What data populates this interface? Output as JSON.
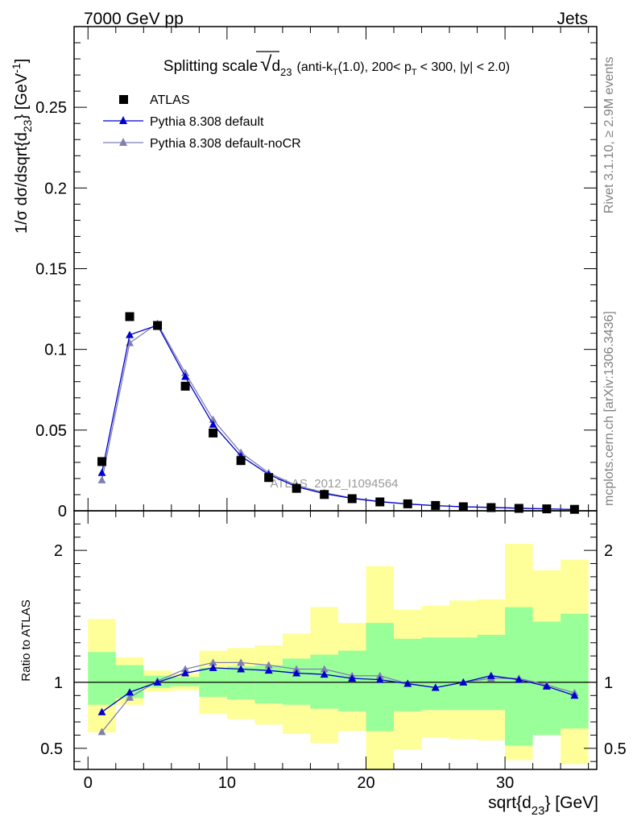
{
  "header": {
    "left": "7000 GeV pp",
    "right": "Jets"
  },
  "side_labels": {
    "rivet": "Rivet 3.1.10, ≥ 2.9M events",
    "mcplots": "mcplots.cern.ch [arXiv:1306.3436]"
  },
  "watermark": "ATLAS_2012_I1094564",
  "title": {
    "prefix": "Splitting scale",
    "var": "d",
    "var_sub": "23",
    "suffix_1": "(anti-k",
    "suffix_sub_1": "T",
    "suffix_2": "(1.0), 200< p",
    "suffix_sub_2": "T",
    "suffix_3": "< 300, |y| < 2.0)"
  },
  "axes": {
    "ylabel_main": "1/σ dσ/dsqrt{d",
    "ylabel_main_sub": "23",
    "ylabel_main_end": "} [GeV",
    "ylabel_main_sup": "-1",
    "ylabel_main_close": "]",
    "ylabel_ratio": "Ratio to ATLAS",
    "xlabel": "sqrt{d",
    "xlabel_sub": "23",
    "xlabel_end": "} [GeV]"
  },
  "colors": {
    "data": "#000000",
    "default": "#0000cc",
    "nocr": "#7f7fb2",
    "band_inner": "#99ff99",
    "band_outer": "#ffff99"
  },
  "chart_data": {
    "type": "scatter",
    "x_edges": [
      0,
      2,
      4,
      6,
      8,
      10,
      12,
      14,
      16,
      18,
      20,
      22,
      24,
      26,
      28,
      30,
      32,
      34,
      36
    ],
    "x": [
      1,
      3,
      5,
      7,
      9,
      11,
      13,
      15,
      17,
      19,
      21,
      23,
      25,
      27,
      29,
      31,
      33,
      35
    ],
    "xlim": [
      -1,
      36.6
    ],
    "xticks": [
      0,
      10,
      20,
      30
    ],
    "main": {
      "ylim": [
        0,
        0.3
      ],
      "yticks": [
        0,
        0.05,
        0.1,
        0.15,
        0.2,
        0.25
      ],
      "ytick_labels": [
        "0",
        "0.05",
        "0.1",
        "0.15",
        "0.2",
        "0.25"
      ]
    },
    "ratio": {
      "ylim": [
        0.34,
        2.3
      ],
      "yticks": [
        0.5,
        1,
        2
      ],
      "ytick_labels": [
        "0.5",
        "1",
        "2"
      ]
    },
    "legend_position": "top-left",
    "series": [
      {
        "name": "ATLAS",
        "marker": "square",
        "values": [
          0.0305,
          0.1203,
          0.1148,
          0.0772,
          0.0482,
          0.0311,
          0.0206,
          0.0139,
          0.0101,
          0.0075,
          0.0055,
          0.0043,
          0.0033,
          0.0025,
          0.002,
          0.0015,
          0.0012,
          0.0009
        ]
      },
      {
        "name": "Pythia 8.308 default",
        "marker": "triangle",
        "values": [
          0.0236,
          0.109,
          0.115,
          0.0831,
          0.0535,
          0.0339,
          0.0225,
          0.0149,
          0.0106,
          0.0077,
          0.0056,
          0.0042,
          0.0032,
          0.0025,
          0.0021,
          0.0016,
          0.0012,
          0.0008
        ],
        "ratio": [
          0.775,
          0.925,
          1.0,
          1.07,
          1.11,
          1.1,
          1.09,
          1.07,
          1.06,
          1.03,
          1.02,
          0.99,
          0.96,
          1.0,
          1.05,
          1.02,
          0.97,
          0.9
        ]
      },
      {
        "name": "Pythia 8.308 default-noCR",
        "marker": "triangle",
        "values": [
          0.019,
          0.104,
          0.116,
          0.0854,
          0.0565,
          0.0361,
          0.0235,
          0.0157,
          0.0112,
          0.0079,
          0.0058,
          0.0043,
          0.0032,
          0.0025,
          0.0021,
          0.0016,
          0.0012,
          0.0008
        ],
        "ratio": [
          0.625,
          0.885,
          1.01,
          1.1,
          1.15,
          1.15,
          1.13,
          1.1,
          1.1,
          1.05,
          1.05,
          0.99,
          0.96,
          1.0,
          1.03,
          1.03,
          0.98,
          0.92
        ]
      }
    ],
    "band_inner_lo": [
      0.83,
      0.88,
      0.96,
      0.97,
      0.89,
      0.87,
      0.84,
      0.83,
      0.8,
      0.78,
      0.63,
      0.78,
      0.79,
      0.79,
      0.79,
      0.52,
      0.6,
      0.65
    ],
    "band_inner_hi": [
      1.23,
      1.13,
      1.05,
      1.04,
      1.11,
      1.12,
      1.13,
      1.18,
      1.21,
      1.24,
      1.45,
      1.33,
      1.34,
      1.34,
      1.36,
      1.57,
      1.46,
      1.52
    ],
    "band_outer_lo": [
      0.62,
      0.83,
      0.93,
      0.94,
      0.76,
      0.72,
      0.68,
      0.61,
      0.54,
      0.63,
      0.34,
      0.49,
      0.58,
      0.57,
      0.56,
      0.41,
      0.7,
      0.38
    ],
    "band_outer_hi": [
      1.48,
      1.19,
      1.09,
      1.07,
      1.24,
      1.26,
      1.28,
      1.37,
      1.57,
      1.45,
      1.88,
      1.55,
      1.58,
      1.62,
      1.63,
      2.05,
      1.85,
      1.93
    ]
  }
}
